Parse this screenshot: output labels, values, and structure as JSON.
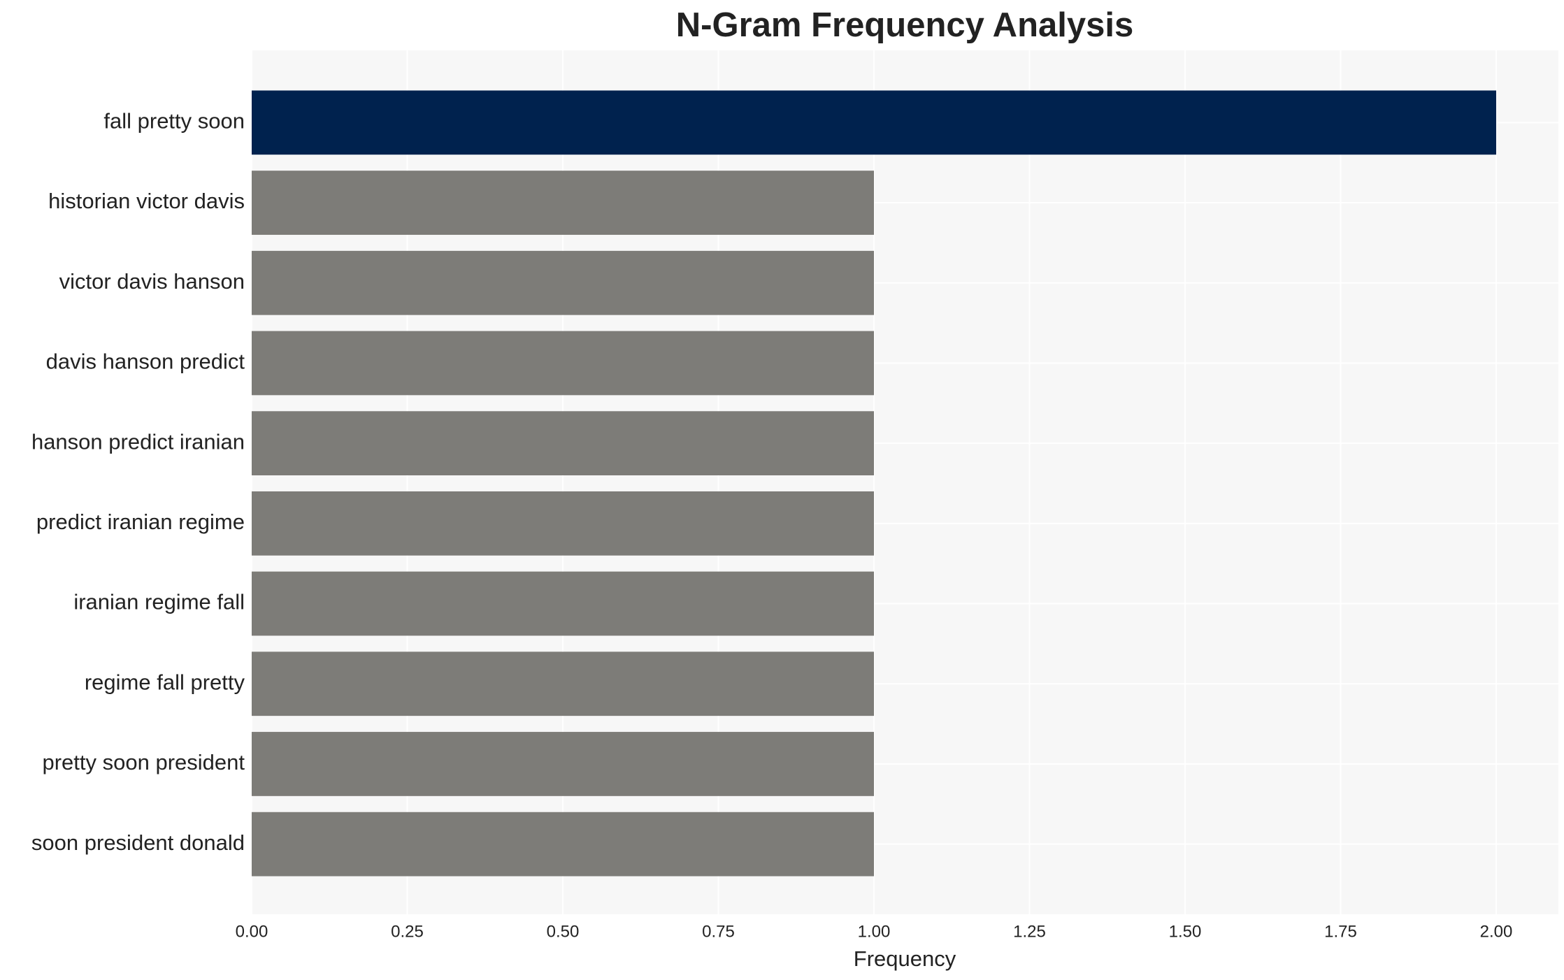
{
  "chart_data": {
    "type": "barh",
    "title": "N-Gram Frequency Analysis",
    "categories": [
      "fall pretty soon",
      "historian victor davis",
      "victor davis hanson",
      "davis hanson predict",
      "hanson predict iranian",
      "predict iranian regime",
      "iranian regime fall",
      "regime fall pretty",
      "pretty soon president",
      "soon president donald"
    ],
    "values": [
      2,
      1,
      1,
      1,
      1,
      1,
      1,
      1,
      1,
      1
    ],
    "colors": [
      "#00224e",
      "#7d7c78",
      "#7d7c78",
      "#7d7c78",
      "#7d7c78",
      "#7d7c78",
      "#7d7c78",
      "#7d7c78",
      "#7d7c78",
      "#7d7c78"
    ],
    "xlabel": "Frequency",
    "xlim": [
      0,
      2.1
    ],
    "xticks": [
      {
        "value": 0,
        "label": "0.00"
      },
      {
        "value": 0.25,
        "label": "0.25"
      },
      {
        "value": 0.5,
        "label": "0.50"
      },
      {
        "value": 0.75,
        "label": "0.75"
      },
      {
        "value": 1,
        "label": "1.00"
      },
      {
        "value": 1.25,
        "label": "1.25"
      },
      {
        "value": 1.5,
        "label": "1.50"
      },
      {
        "value": 1.75,
        "label": "1.75"
      },
      {
        "value": 2,
        "label": "2.00"
      }
    ],
    "grid": true
  }
}
